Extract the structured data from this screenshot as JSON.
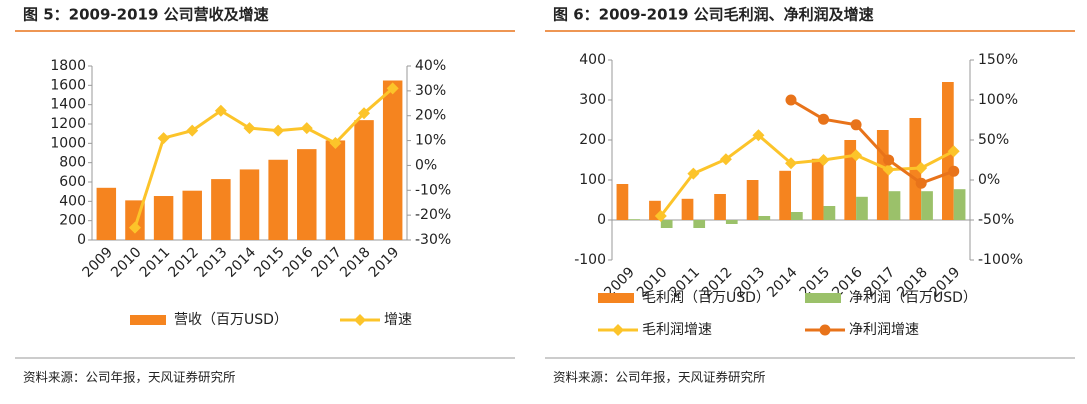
{
  "chart_data": [
    {
      "type": "bar_line",
      "title": "图 5：2009-2019 公司营收及增速",
      "categories": [
        "2009",
        "2010",
        "2011",
        "2012",
        "2013",
        "2014",
        "2015",
        "2016",
        "2017",
        "2018",
        "2019"
      ],
      "series": [
        {
          "name": "营收（百万USD）",
          "kind": "bar",
          "color": "#f5841f",
          "axis": "y",
          "values": [
            540,
            410,
            455,
            510,
            630,
            730,
            830,
            940,
            1030,
            1240,
            1650
          ]
        },
        {
          "name": "增速",
          "kind": "line",
          "marker": "diamond",
          "color": "#fcc42a",
          "axis": "y2",
          "values": [
            null,
            -25,
            11,
            14,
            22,
            15,
            14,
            15,
            9,
            21,
            31
          ]
        }
      ],
      "ylim": [
        0,
        1800
      ],
      "yticks": [
        0,
        200,
        400,
        600,
        800,
        1000,
        1200,
        1400,
        1600,
        1800
      ],
      "y2lim": [
        -30,
        40
      ],
      "y2ticks": [
        {
          "value": -30,
          "label": "-30%"
        },
        {
          "value": -20,
          "label": "-20%"
        },
        {
          "value": -10,
          "label": "-10%"
        },
        {
          "value": 0,
          "label": "0%"
        },
        {
          "value": 10,
          "label": "10%"
        },
        {
          "value": 20,
          "label": "20%"
        },
        {
          "value": 30,
          "label": "30%"
        },
        {
          "value": 40,
          "label": "40%"
        }
      ],
      "source": "资料来源：公司年报，天风证券研究所"
    },
    {
      "type": "bar_line",
      "title": "图 6：2009-2019 公司毛利润、净利润及增速",
      "categories": [
        "2009",
        "2010",
        "2011",
        "2012",
        "2013",
        "2014",
        "2015",
        "2016",
        "2017",
        "2018",
        "2019"
      ],
      "series": [
        {
          "name": "毛利润（百万USD）",
          "kind": "bar",
          "color": "#f5841f",
          "axis": "y",
          "values": [
            90,
            48,
            53,
            65,
            100,
            123,
            153,
            200,
            225,
            255,
            345
          ]
        },
        {
          "name": "净利润（百万USD）",
          "kind": "bar",
          "color": "#9bc16a",
          "axis": "y",
          "values": [
            2,
            -20,
            -20,
            -10,
            10,
            20,
            35,
            58,
            72,
            72,
            77
          ]
        },
        {
          "name": "毛利润增速",
          "kind": "line",
          "marker": "diamond",
          "color": "#fcc42a",
          "axis": "y2",
          "values": [
            null,
            -45,
            8,
            26,
            56,
            21,
            25,
            31,
            13,
            15,
            36
          ]
        },
        {
          "name": "净利润增速",
          "kind": "line",
          "marker": "circle",
          "color": "#e8731a",
          "axis": "y2",
          "values": [
            null,
            null,
            null,
            null,
            null,
            100,
            76,
            69,
            25,
            -4,
            11
          ]
        }
      ],
      "ylim": [
        -100,
        400
      ],
      "yticks": [
        -100,
        0,
        100,
        200,
        300,
        400
      ],
      "y2lim": [
        -100,
        150
      ],
      "y2ticks": [
        {
          "value": -100,
          "label": "-100%"
        },
        {
          "value": -50,
          "label": "-50%"
        },
        {
          "value": 0,
          "label": "0%"
        },
        {
          "value": 50,
          "label": "50%"
        },
        {
          "value": 100,
          "label": "100%"
        },
        {
          "value": 150,
          "label": "150%"
        }
      ],
      "source": "资料来源：公司年报，天风证券研究所"
    }
  ]
}
